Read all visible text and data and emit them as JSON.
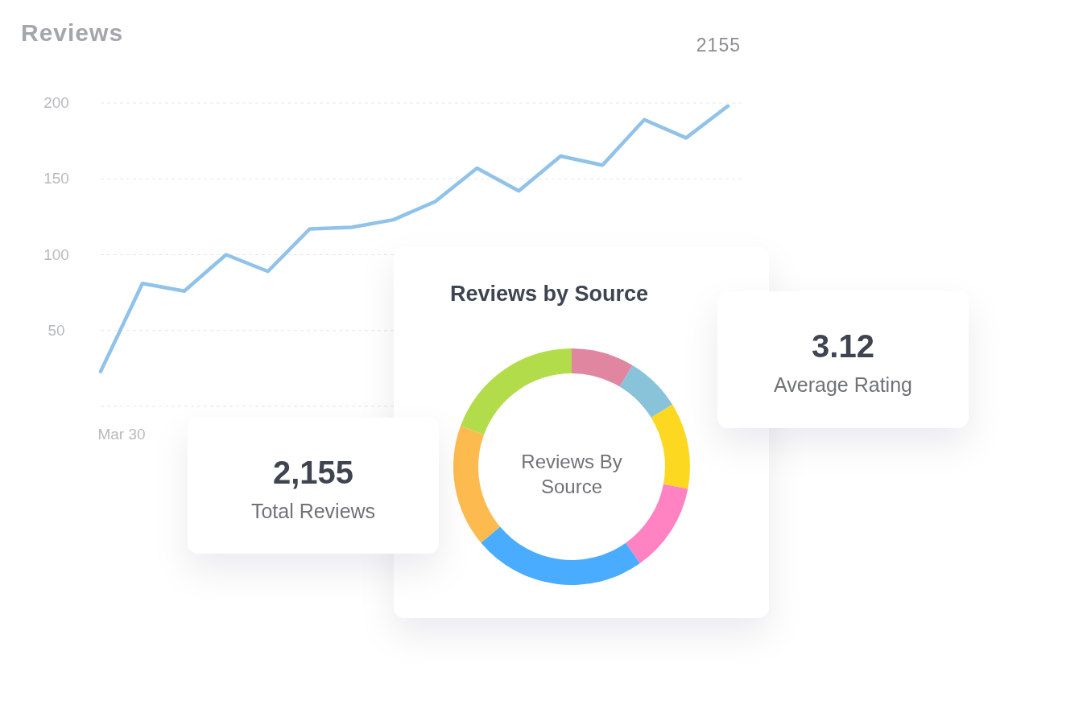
{
  "chart_data": [
    {
      "type": "line",
      "title": "Reviews",
      "annotations": [
        "2155",
        "Mar 30"
      ],
      "color": "#90c2ea",
      "grid": "y",
      "categories": [
        null,
        null,
        null,
        null,
        null,
        null,
        null,
        null,
        null,
        null,
        null,
        null,
        null,
        null,
        null,
        null
      ],
      "values": [
        23,
        81,
        76,
        100,
        89,
        117,
        118,
        123,
        135,
        157,
        142,
        165,
        159,
        189,
        177,
        198
      ],
      "ylim": [
        0,
        200
      ],
      "yticks": [
        {
          "value": 0,
          "label": null
        },
        50,
        100,
        150,
        200
      ]
    },
    {
      "type": "donut",
      "title": "Reviews by Source",
      "annotations": [
        "Reviews By Source"
      ],
      "categories": [
        null,
        null,
        null,
        null,
        null,
        null,
        null
      ],
      "values": [
        8.6,
        7.6,
        11.8,
        12.2,
        23.7,
        16.7,
        19.4
      ],
      "colors": [
        "#e086a0",
        "#89c3d9",
        "#fdd821",
        "#ff82c3",
        "#4aacfe",
        "#fdbb4f",
        "#b3dc4a"
      ]
    },
    {
      "type": "other",
      "annotations": [
        "3.12",
        "Average Rating"
      ]
    },
    {
      "type": "other",
      "annotations": [
        "2,155",
        "Total Reviews"
      ]
    }
  ]
}
